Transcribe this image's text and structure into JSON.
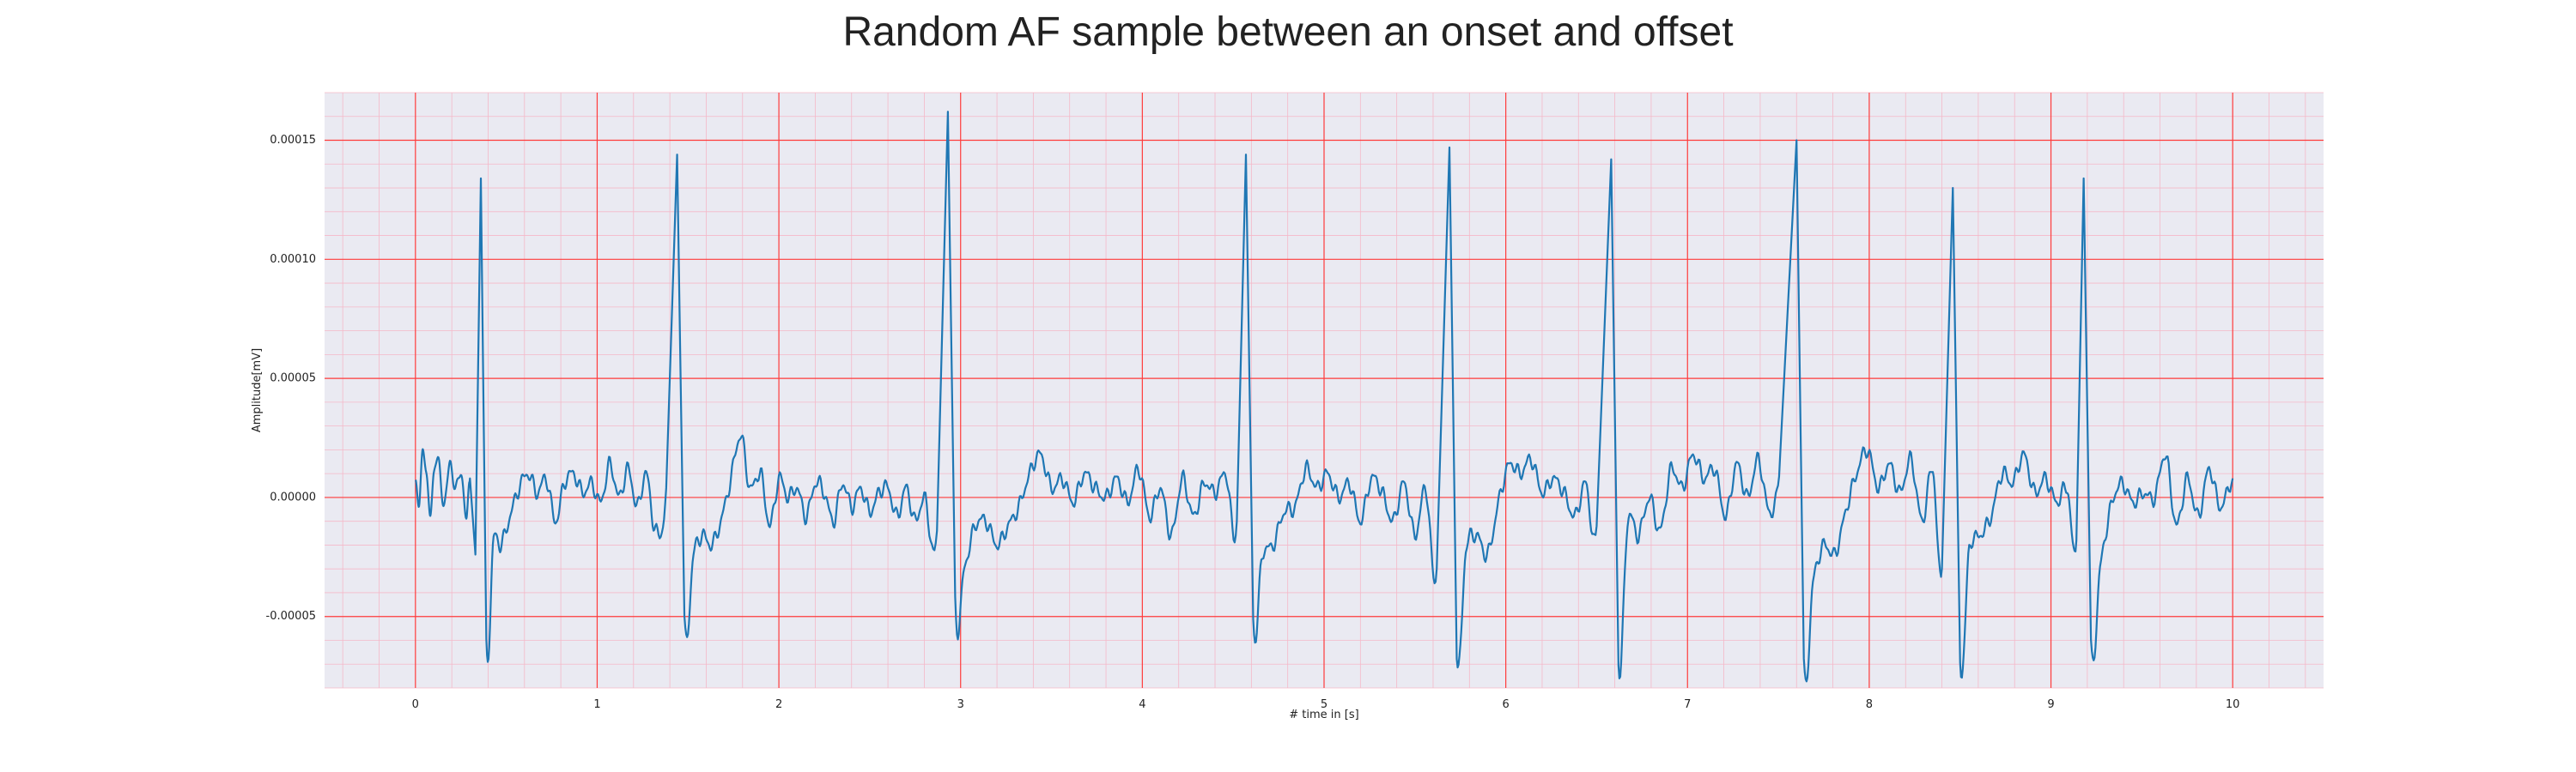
{
  "chart_data": {
    "type": "line",
    "title": "Random AF sample between an onset and offset",
    "xlabel": "# time in [s]",
    "ylabel": "Amplitude[mV]",
    "xlim": [
      -0.5,
      10.5
    ],
    "ylim": [
      -8e-05,
      0.00017
    ],
    "x_ticks": [
      "0",
      "1",
      "2",
      "3",
      "4",
      "5",
      "6",
      "7",
      "8",
      "9",
      "10"
    ],
    "y_ticks": [
      "-0.00005",
      "0.00000",
      "0.00005",
      "0.00010",
      "0.00015"
    ],
    "grid": true,
    "minor_grid": true,
    "legend": "none",
    "colors": {
      "line": "#1f77b4",
      "plot_background": "#eaeaf2",
      "major_grid": "#ff3b3b",
      "minor_grid": "#f5b8c8"
    },
    "r_peaks": [
      {
        "t": 0.36,
        "peak": 0.000134,
        "trough": -6.2e-05
      },
      {
        "t": 1.44,
        "peak": 0.000144,
        "trough": -5.2e-05
      },
      {
        "t": 2.93,
        "peak": 0.000162,
        "trough": -4.4e-05
      },
      {
        "t": 4.57,
        "peak": 0.000144,
        "trough": -5.1e-05
      },
      {
        "t": 5.69,
        "peak": 0.000147,
        "trough": -6.5e-05
      },
      {
        "t": 6.58,
        "peak": 0.000142,
        "trough": -6.9e-05
      },
      {
        "t": 7.6,
        "peak": 0.00015,
        "trough": -7e-05
      },
      {
        "t": 8.46,
        "peak": 0.00013,
        "trough": -6.8e-05
      },
      {
        "t": 9.18,
        "peak": 0.000134,
        "trough": -6.2e-05
      }
    ],
    "series": [
      {
        "x": [
          0.0,
          0.02,
          0.04,
          0.06,
          0.08,
          0.1,
          0.13,
          0.16,
          0.19,
          0.22,
          0.25,
          0.28,
          0.3,
          0.33,
          0.36,
          0.39,
          0.43,
          0.47,
          0.52,
          0.57,
          0.62,
          0.67,
          0.72,
          0.77,
          0.82,
          0.87,
          0.92,
          0.97,
          1.02,
          1.07,
          1.12,
          1.17,
          1.22,
          1.27,
          1.32,
          1.38,
          1.44,
          1.48,
          1.53,
          1.58,
          1.63,
          1.68,
          1.73,
          1.79,
          1.84,
          1.9,
          1.95,
          2.0,
          2.05,
          2.1,
          2.15,
          2.2,
          2.25,
          2.3,
          2.35,
          2.4,
          2.45,
          2.5,
          2.55,
          2.6,
          2.65,
          2.7,
          2.75,
          2.8,
          2.87,
          2.93,
          2.97,
          3.02,
          3.08,
          3.14,
          3.2,
          3.26,
          3.32,
          3.38,
          3.44,
          3.5,
          3.56,
          3.62,
          3.68,
          3.74,
          3.8,
          3.86,
          3.92,
          3.98,
          4.04,
          4.1,
          4.16,
          4.22,
          4.28,
          4.34,
          4.4,
          4.46,
          4.52,
          4.57,
          4.61,
          4.66,
          4.72,
          4.78,
          4.84,
          4.9,
          4.96,
          5.02,
          5.08,
          5.14,
          5.2,
          5.26,
          5.32,
          5.38,
          5.44,
          5.5,
          5.56,
          5.62,
          5.69,
          5.73,
          5.78,
          5.84,
          5.9,
          5.96,
          6.02,
          6.08,
          6.14,
          6.2,
          6.26,
          6.32,
          6.38,
          6.44,
          6.5,
          6.58,
          6.62,
          6.67,
          6.73,
          6.79,
          6.85,
          6.91,
          6.97,
          7.03,
          7.09,
          7.15,
          7.21,
          7.27,
          7.33,
          7.39,
          7.45,
          7.51,
          7.6,
          7.64,
          7.69,
          7.75,
          7.81,
          7.87,
          7.93,
          7.99,
          8.05,
          8.11,
          8.17,
          8.23,
          8.29,
          8.35,
          8.4,
          8.46,
          8.5,
          8.55,
          8.61,
          8.67,
          8.73,
          8.79,
          8.85,
          8.91,
          8.97,
          9.03,
          9.09,
          9.14,
          9.18,
          9.22,
          9.27,
          9.33,
          9.39,
          9.45,
          9.51,
          9.57,
          9.63,
          9.69,
          9.75,
          9.81,
          9.87,
          9.93,
          10.0
        ],
        "y": [
          6e-06,
          -4e-06,
          2.2e-05,
          8e-06,
          -6e-06,
          1e-05,
          1.4e-05,
          -4e-06,
          1.6e-05,
          2e-06,
          1.2e-05,
          -1e-05,
          8e-06,
          -2.4e-05,
          0.000134,
          -6.2e-05,
          -1.8e-05,
          -2e-05,
          -8e-06,
          4e-06,
          1e-05,
          2e-06,
          8e-06,
          -1e-05,
          6e-06,
          1e-05,
          2e-06,
          6e-06,
          -2e-06,
          1.4e-05,
          0.0,
          1.2e-05,
          -4e-06,
          1e-05,
          -1.4e-05,
          4e-06,
          0.000144,
          -5.2e-05,
          -2.4e-05,
          -1.6e-05,
          -2e-05,
          -1e-05,
          6e-06,
          2.6e-05,
          4e-06,
          1e-05,
          -1.2e-05,
          8e-06,
          0.0,
          4e-06,
          -8e-06,
          6e-06,
          2e-06,
          -1e-05,
          6e-06,
          -4e-06,
          4e-06,
          -6e-06,
          2e-06,
          4e-06,
          -8e-06,
          4e-06,
          -1e-05,
          0.0,
          -1.4e-05,
          0.000162,
          -4.4e-05,
          -3e-05,
          -1.2e-05,
          -1e-05,
          -2e-05,
          -1.2e-05,
          -4e-06,
          1e-05,
          1.8e-05,
          4e-06,
          8e-06,
          -2e-06,
          1e-05,
          4e-06,
          0.0,
          8e-06,
          -2e-06,
          1.2e-05,
          -8e-06,
          4e-06,
          -1.6e-05,
          8e-06,
          -8e-06,
          6e-06,
          2e-06,
          1e-05,
          -1e-05,
          0.000144,
          -5.1e-05,
          -2.4e-05,
          -2e-05,
          -6e-06,
          -4e-06,
          1.2e-05,
          4e-06,
          1e-05,
          0.0,
          6e-06,
          -1e-05,
          8e-06,
          2e-06,
          -1e-05,
          6e-06,
          -1.6e-05,
          4e-06,
          -3e-05,
          0.000147,
          -6.5e-05,
          -2.2e-05,
          -1.6e-05,
          -2.4e-05,
          -2e-06,
          1.4e-05,
          1e-05,
          1.6e-05,
          2e-06,
          8e-06,
          2e-06,
          -8e-06,
          6e-06,
          -1.2e-05,
          0.000142,
          -6.9e-05,
          -1e-05,
          -1.6e-05,
          0.0,
          -1.4e-05,
          1.2e-05,
          4e-06,
          1.8e-05,
          8e-06,
          1.2e-05,
          -8e-06,
          1.4e-05,
          0.0,
          1.6e-05,
          -6e-06,
          1.8e-05,
          0.00015,
          -7e-05,
          -3.6e-05,
          -2e-05,
          -2.4e-05,
          -6e-06,
          1e-05,
          2e-05,
          4e-06,
          1.4e-05,
          2e-06,
          1.6e-05,
          -1e-05,
          1.2e-05,
          -3e-05,
          0.00013,
          -6.8e-05,
          -2.2e-05,
          -1.6e-05,
          -8e-06,
          1e-05,
          6e-06,
          1.8e-05,
          2e-06,
          8e-06,
          -2e-06,
          4e-06,
          -1.8e-05,
          0.000134,
          -6.2e-05,
          -3e-05,
          -4e-06,
          6e-06,
          -2e-06,
          2e-06,
          0.0,
          1.8e-05,
          -1.2e-05,
          8e-06,
          -8e-06,
          1.2e-05,
          -4e-06,
          8e-06
        ]
      }
    ]
  }
}
